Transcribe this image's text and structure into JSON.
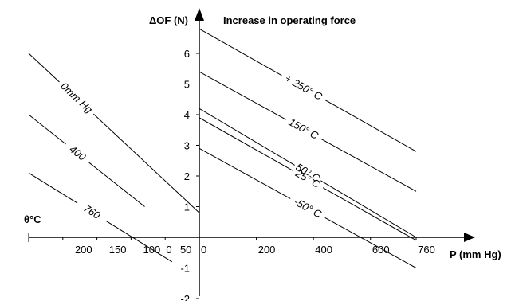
{
  "chart_data": {
    "type": "line",
    "title": "Increase in operating force",
    "ylabel": "ΔOF (N)",
    "xlabel": "P (mm Hg)",
    "left_axis_label": "θ°C",
    "y_ticks": [
      "-2",
      "-1",
      "1",
      "2",
      "3",
      "4",
      "5",
      "6"
    ],
    "x_ticks_right": [
      "0",
      "200",
      "400",
      "600",
      "760"
    ],
    "x_ticks_left": [
      "200",
      "150",
      "100",
      "50",
      "0"
    ],
    "pressure_series": [
      {
        "name": "0mm Hg",
        "points": [
          [
            -250,
            6.0
          ],
          [
            0,
            0.8
          ]
        ]
      },
      {
        "name": "400",
        "points": [
          [
            -250,
            4.0
          ],
          [
            -80,
            1.0
          ]
        ]
      },
      {
        "name": "760",
        "points": [
          [
            -250,
            2.1
          ],
          [
            -40,
            -0.8
          ]
        ]
      }
    ],
    "temperature_series": [
      {
        "name": "+ 250° C",
        "points": [
          [
            0,
            6.8
          ],
          [
            760,
            2.8
          ]
        ]
      },
      {
        "name": "150° C",
        "points": [
          [
            0,
            5.4
          ],
          [
            760,
            1.5
          ]
        ]
      },
      {
        "name": "50° C",
        "points": [
          [
            0,
            4.2
          ],
          [
            760,
            0.0
          ]
        ]
      },
      {
        "name": "25° C",
        "points": [
          [
            0,
            3.9
          ],
          [
            760,
            -0.1
          ]
        ]
      },
      {
        "name": "-50° C",
        "points": [
          [
            0,
            2.9
          ],
          [
            760,
            -1.0
          ]
        ]
      }
    ]
  }
}
